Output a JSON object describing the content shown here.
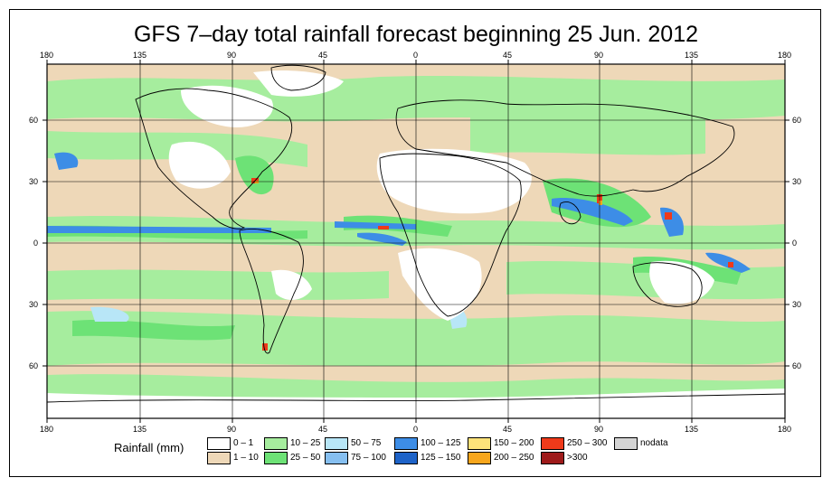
{
  "title": "GFS 7–day total rainfall forecast beginning 25 Jun. 2012",
  "lon_labels": [
    "180",
    "135",
    "90",
    "45",
    "0",
    "45",
    "90",
    "135",
    "180"
  ],
  "lat_labels": [
    "60",
    "30",
    "0",
    "30",
    "60"
  ],
  "legend": {
    "title": "Rainfall (mm)",
    "items": [
      {
        "label": "0 – 1",
        "color": "#ffffff"
      },
      {
        "label": "1 – 10",
        "color": "#eed8b8"
      },
      {
        "label": "10 – 25",
        "color": "#a6ed9e"
      },
      {
        "label": "25 – 50",
        "color": "#6de276"
      },
      {
        "label": "50 – 75",
        "color": "#b8e6f7"
      },
      {
        "label": "75 – 100",
        "color": "#86bff0"
      },
      {
        "label": "100 – 125",
        "color": "#3d8de6"
      },
      {
        "label": "125 – 150",
        "color": "#1e63c8"
      },
      {
        "label": "150 – 200",
        "color": "#fde27a"
      },
      {
        "label": "200 – 250",
        "color": "#f7a61c"
      },
      {
        "label": "250 – 300",
        "color": "#ef3a1a"
      },
      {
        "label": ">300",
        "color": "#9e1a1a"
      },
      {
        "label": "nodata",
        "color": "#d4d4d4"
      }
    ]
  }
}
